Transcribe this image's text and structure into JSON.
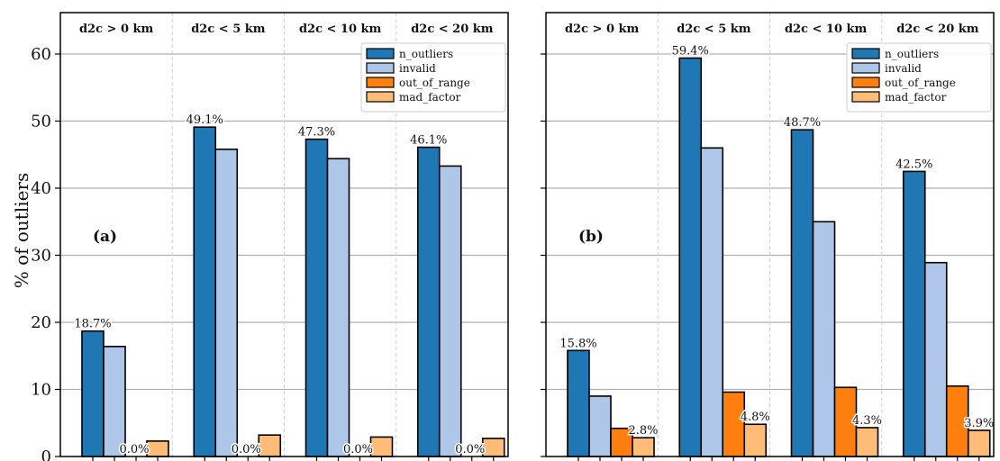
{
  "chart_data": {
    "type": "bar",
    "ylabel": "% of outliers",
    "ylim": [
      0,
      65
    ],
    "yticks": [
      0,
      10,
      20,
      30,
      40,
      50,
      60
    ],
    "grid": "horizontal",
    "groups": [
      "d2c > 0 km",
      "d2c < 5 km",
      "d2c < 10 km",
      "d2c < 20 km"
    ],
    "legend": {
      "placement": "top-right",
      "entries": [
        {
          "name": "n_outliers",
          "color": "#1f77b4"
        },
        {
          "name": "invalid",
          "color": "#aec7e8"
        },
        {
          "name": "out_of_range",
          "color": "#ff7f0e"
        },
        {
          "name": "mad_factor",
          "color": "#ffbb78"
        }
      ]
    },
    "panels": [
      {
        "tag": "(a)",
        "series": [
          {
            "name": "n_outliers",
            "values": [
              18.7,
              49.1,
              47.3,
              46.1
            ]
          },
          {
            "name": "invalid",
            "values": [
              16.4,
              45.8,
              44.4,
              43.3
            ]
          },
          {
            "name": "out_of_range",
            "values": [
              0.0,
              0.0,
              0.0,
              0.0
            ]
          },
          {
            "name": "mad_factor",
            "values": [
              2.3,
              3.2,
              2.9,
              2.7
            ]
          }
        ],
        "labels": [
          {
            "series": "n_outliers",
            "group": 0,
            "text": "18.7%"
          },
          {
            "series": "n_outliers",
            "group": 1,
            "text": "49.1%"
          },
          {
            "series": "n_outliers",
            "group": 2,
            "text": "47.3%"
          },
          {
            "series": "n_outliers",
            "group": 3,
            "text": "46.1%"
          },
          {
            "series": "out_of_range",
            "group": 0,
            "text": "0.0%"
          },
          {
            "series": "out_of_range",
            "group": 1,
            "text": "0.0%"
          },
          {
            "series": "out_of_range",
            "group": 2,
            "text": "0.0%"
          },
          {
            "series": "out_of_range",
            "group": 3,
            "text": "0.0%"
          }
        ]
      },
      {
        "tag": "(b)",
        "series": [
          {
            "name": "n_outliers",
            "values": [
              15.8,
              59.4,
              48.7,
              42.5
            ]
          },
          {
            "name": "invalid",
            "values": [
              9.0,
              46.0,
              35.0,
              28.9
            ]
          },
          {
            "name": "out_of_range",
            "values": [
              4.2,
              9.6,
              10.3,
              10.5
            ]
          },
          {
            "name": "mad_factor",
            "values": [
              2.8,
              4.8,
              4.3,
              3.9
            ]
          }
        ],
        "labels": [
          {
            "series": "n_outliers",
            "group": 0,
            "text": "15.8%"
          },
          {
            "series": "n_outliers",
            "group": 1,
            "text": "59.4%"
          },
          {
            "series": "n_outliers",
            "group": 2,
            "text": "48.7%"
          },
          {
            "series": "n_outliers",
            "group": 3,
            "text": "42.5%"
          },
          {
            "series": "mad_factor",
            "group": 0,
            "text": "2.8%"
          },
          {
            "series": "mad_factor",
            "group": 1,
            "text": "4.8%"
          },
          {
            "series": "mad_factor",
            "group": 2,
            "text": "4.3%"
          },
          {
            "series": "mad_factor",
            "group": 3,
            "text": "3.9%"
          }
        ]
      }
    ]
  }
}
